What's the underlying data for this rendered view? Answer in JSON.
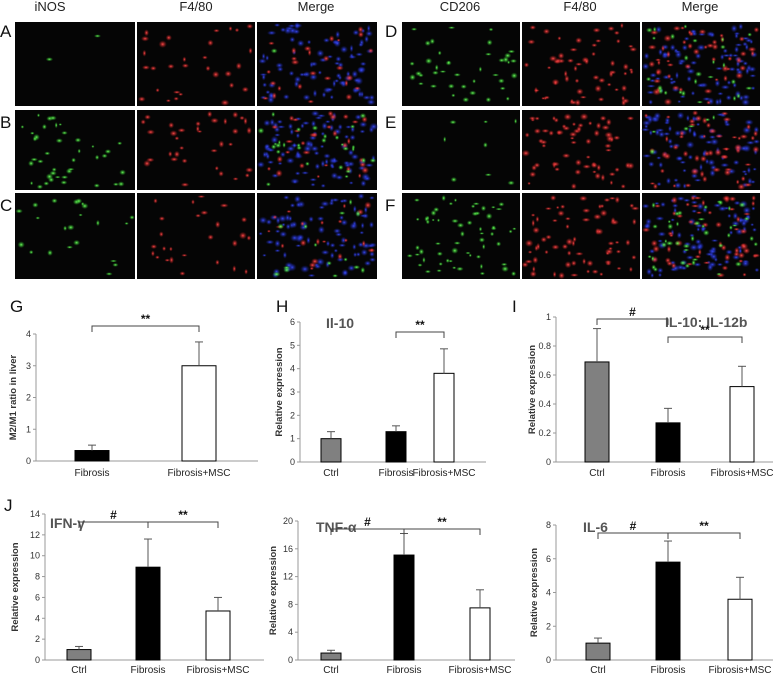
{
  "micrographs": {
    "left_headers": [
      "iNOS",
      "F4/80",
      "Merge"
    ],
    "right_headers": [
      "CD206",
      "F4/80",
      "Merge"
    ],
    "left_rows": [
      "A",
      "B",
      "C"
    ],
    "right_rows": [
      "D",
      "E",
      "F"
    ]
  },
  "colors": {
    "ctrl_bar": "#808080",
    "fibrosis_bar": "#000000",
    "msc_bar": "#ffffff",
    "green_stain": "#2fd12f",
    "red_stain": "#e02424",
    "blue_stain": "#2233cc"
  },
  "chart_data": [
    {
      "panel": "G",
      "type": "bar",
      "title": "",
      "categories": [
        "Fibrosis",
        "Fibrosis+MSC"
      ],
      "values": [
        0.33,
        3.0
      ],
      "errors": [
        0.17,
        0.75
      ],
      "ylabel": "M2/M1 ratio in liver",
      "ylim": [
        0,
        4
      ],
      "yticks": [
        "0",
        "1",
        "2",
        "3",
        "4"
      ],
      "significance": [
        {
          "from": 0,
          "to": 1,
          "label": "**"
        }
      ]
    },
    {
      "panel": "H",
      "type": "bar",
      "title": "Il-10",
      "categories": [
        "Ctrl",
        "Fibrosis",
        "Fibrosis+MSC"
      ],
      "values": [
        1.0,
        1.3,
        3.8
      ],
      "errors": [
        0.3,
        0.25,
        1.05
      ],
      "ylabel": "Relative expression",
      "ylim": [
        0,
        6
      ],
      "yticks": [
        "0",
        "1",
        "2",
        "3",
        "4",
        "5",
        "6"
      ],
      "significance": [
        {
          "from": 1,
          "to": 2,
          "label": "**"
        }
      ]
    },
    {
      "panel": "I",
      "type": "bar",
      "title": "IL-10: IL-12b",
      "categories": [
        "Ctrl",
        "Fibrosis",
        "Fibrosis+MSC"
      ],
      "values": [
        0.69,
        0.27,
        0.52
      ],
      "errors": [
        0.23,
        0.1,
        0.14
      ],
      "ylabel": "Relative expression",
      "ylim": [
        0,
        1
      ],
      "yticks": [
        "0",
        "0.2",
        "0.4",
        "0.6",
        "0.8",
        "1"
      ],
      "significance": [
        {
          "from": 0,
          "to": 1,
          "label": "#"
        },
        {
          "from": 1,
          "to": 2,
          "label": "**"
        }
      ]
    },
    {
      "panel": "J",
      "type": "bar",
      "title": "IFN-γ",
      "categories": [
        "Ctrl",
        "Fibrosis",
        "Fibrosis+MSC"
      ],
      "values": [
        1.0,
        8.9,
        4.7
      ],
      "errors": [
        0.3,
        2.7,
        1.3
      ],
      "ylabel": "Relative expression",
      "ylim": [
        0,
        14
      ],
      "yticks": [
        "0",
        "2",
        "4",
        "6",
        "8",
        "10",
        "12",
        "14"
      ],
      "significance": [
        {
          "from": 0,
          "to": 1,
          "label": "#"
        },
        {
          "from": 1,
          "to": 2,
          "label": "**"
        }
      ]
    },
    {
      "panel": "",
      "type": "bar",
      "title": "TNF-α",
      "categories": [
        "Ctrl",
        "Fibrosis",
        "Fibrosis+MSC"
      ],
      "values": [
        1.0,
        15.1,
        7.5
      ],
      "errors": [
        0.4,
        3.1,
        2.6
      ],
      "ylabel": "Relative expression",
      "ylim": [
        0,
        20
      ],
      "yticks": [
        "0",
        "4",
        "8",
        "12",
        "16",
        "20"
      ],
      "significance": [
        {
          "from": 0,
          "to": 1,
          "label": "#"
        },
        {
          "from": 1,
          "to": 2,
          "label": "**"
        }
      ]
    },
    {
      "panel": "",
      "type": "bar",
      "title": "IL-6",
      "categories": [
        "Ctrl",
        "Fibrosis",
        "Fibrosis+MSC"
      ],
      "values": [
        1.0,
        5.8,
        3.6
      ],
      "errors": [
        0.3,
        1.25,
        1.3
      ],
      "ylabel": "Relative expression",
      "ylim": [
        0,
        8
      ],
      "yticks": [
        "0",
        "2",
        "4",
        "6",
        "8"
      ],
      "significance": [
        {
          "from": 0,
          "to": 1,
          "label": "#"
        },
        {
          "from": 1,
          "to": 2,
          "label": "**"
        }
      ]
    }
  ]
}
